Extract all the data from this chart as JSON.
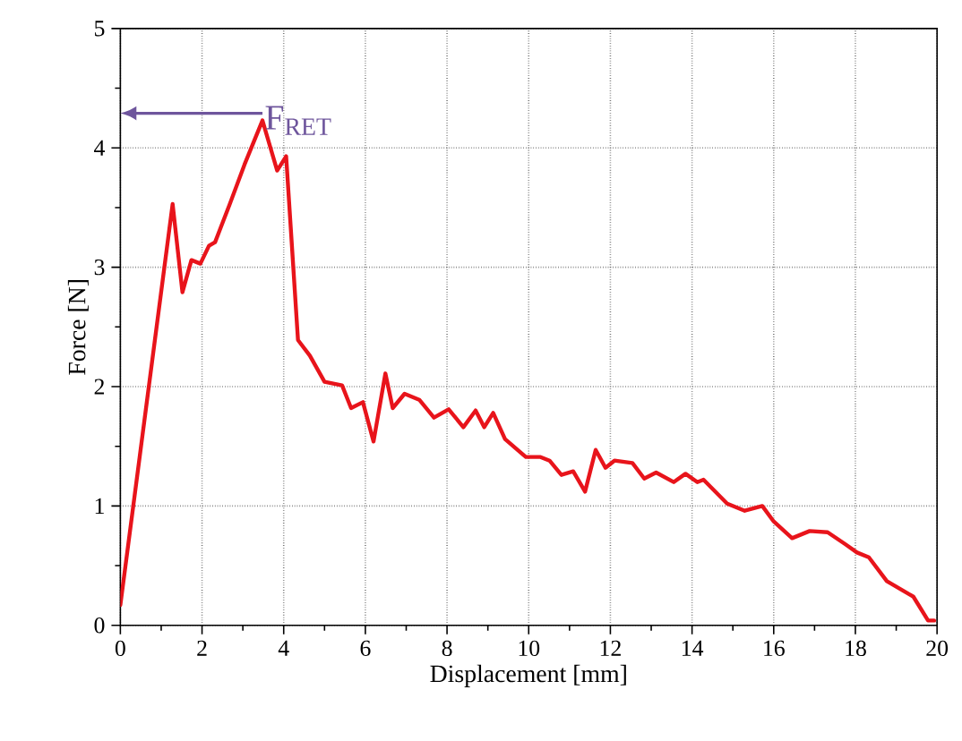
{
  "chart_data": {
    "type": "line",
    "xlabel": "Displacement [mm]",
    "ylabel": "Force [N]",
    "xlim": [
      0,
      20
    ],
    "ylim": [
      0,
      5
    ],
    "xticks": [
      0,
      2,
      4,
      6,
      8,
      10,
      12,
      14,
      16,
      18,
      20
    ],
    "yticks": [
      0,
      1,
      2,
      3,
      4,
      5
    ],
    "grid": true,
    "line_style": "solid",
    "series": [
      {
        "color": "#e8141b",
        "x": [
          0,
          1.28,
          1.52,
          1.74,
          1.96,
          2.17,
          2.32,
          2.68,
          3.04,
          3.48,
          3.84,
          4.06,
          4.35,
          4.64,
          5.0,
          5.43,
          5.65,
          5.94,
          6.2,
          6.49,
          6.67,
          6.96,
          7.32,
          7.68,
          8.04,
          8.4,
          8.7,
          8.91,
          9.13,
          9.42,
          9.93,
          10.29,
          10.51,
          10.8,
          11.09,
          11.38,
          11.64,
          11.88,
          12.1,
          12.54,
          12.83,
          13.12,
          13.55,
          13.84,
          14.13,
          14.28,
          14.86,
          15.29,
          15.72,
          16.0,
          16.45,
          16.88,
          17.32,
          17.75,
          18.04,
          18.33,
          18.77,
          19.42,
          19.78,
          19.93
        ],
        "values": [
          0.17,
          3.53,
          2.79,
          3.06,
          3.03,
          3.18,
          3.21,
          3.53,
          3.86,
          4.23,
          3.81,
          3.93,
          2.39,
          2.26,
          2.04,
          2.01,
          1.82,
          1.87,
          1.54,
          2.11,
          1.82,
          1.94,
          1.89,
          1.74,
          1.81,
          1.66,
          1.8,
          1.66,
          1.78,
          1.56,
          1.41,
          1.41,
          1.38,
          1.26,
          1.29,
          1.12,
          1.47,
          1.32,
          1.38,
          1.36,
          1.23,
          1.28,
          1.2,
          1.27,
          1.2,
          1.22,
          1.02,
          0.96,
          1.0,
          0.87,
          0.73,
          0.79,
          0.78,
          0.68,
          0.61,
          0.57,
          0.37,
          0.24,
          0.04,
          0.04
        ]
      }
    ],
    "annotations": [
      {
        "text": "F$_{RET}$",
        "x": 3.48,
        "y": 4.23
      }
    ]
  }
}
